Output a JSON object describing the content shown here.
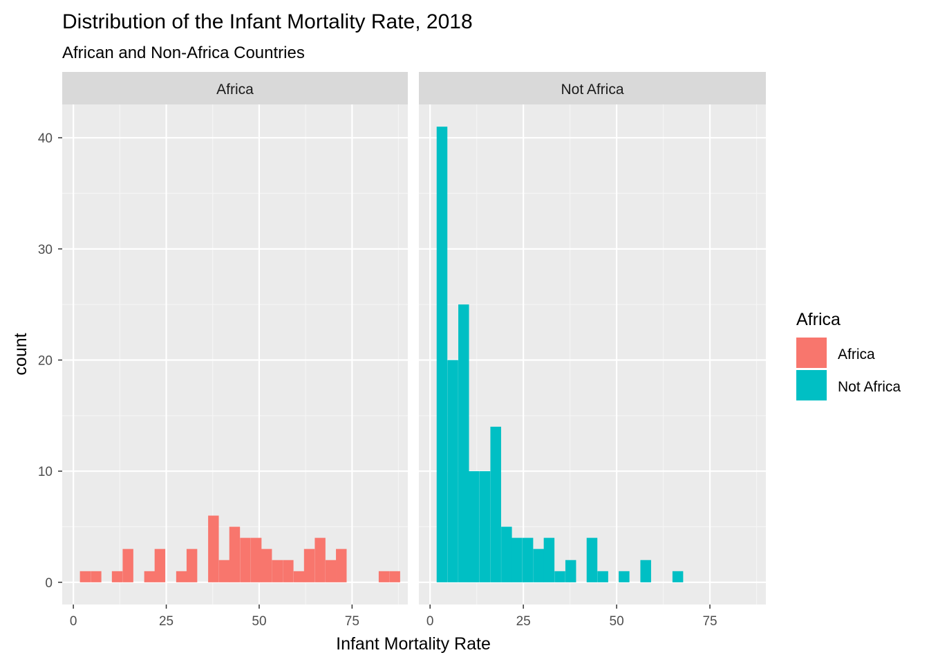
{
  "chart_data": {
    "type": "bar",
    "chart_kind": "faceted histogram",
    "title": "Distribution of the Infant Mortality Rate, 2018",
    "subtitle": "African and Non-Africa Countries",
    "xlabel": "Infant Mortality Rate",
    "ylabel": "count",
    "xlim": [
      -3,
      90
    ],
    "ylim": [
      -2,
      43
    ],
    "x_ticks": [
      0,
      25,
      50,
      75
    ],
    "y_ticks": [
      0,
      10,
      20,
      30,
      40
    ],
    "x_minor": [
      12.5,
      37.5,
      62.5,
      87.5
    ],
    "y_minor": [
      5,
      15,
      25,
      35
    ],
    "grid": true,
    "bin_width": 2.87,
    "legend": {
      "title": "Africa",
      "position": "right",
      "entries": [
        {
          "label": "Africa",
          "color": "#F8766D"
        },
        {
          "label": "Not Africa",
          "color": "#00BFC4"
        }
      ]
    },
    "facets": [
      {
        "label": "Africa",
        "color": "#F8766D",
        "bin_centers": [
          3.2,
          6.1,
          9.0,
          11.8,
          14.7,
          17.6,
          20.5,
          23.3,
          26.2,
          29.1,
          31.9,
          34.8,
          37.7,
          40.6,
          43.4,
          46.3,
          49.2,
          52.0,
          54.9,
          57.8,
          60.7,
          63.5,
          66.4,
          69.3,
          72.1,
          75.0,
          77.9,
          80.8,
          83.6,
          86.5
        ],
        "counts": [
          1,
          1,
          0,
          1,
          3,
          0,
          1,
          3,
          0,
          1,
          3,
          0,
          6,
          2,
          5,
          4,
          4,
          3,
          2,
          2,
          1,
          3,
          4,
          2,
          3,
          0,
          0,
          0,
          1,
          1
        ]
      },
      {
        "label": "Not Africa",
        "color": "#00BFC4",
        "bin_centers": [
          3.2,
          6.1,
          9.0,
          11.8,
          14.7,
          17.6,
          20.5,
          23.3,
          26.2,
          29.1,
          31.9,
          34.8,
          37.7,
          40.6,
          43.4,
          46.3,
          49.2,
          52.0,
          54.9,
          57.8,
          60.7,
          63.5,
          66.4
        ],
        "counts": [
          41,
          20,
          25,
          10,
          10,
          14,
          5,
          4,
          4,
          3,
          4,
          1,
          2,
          0,
          4,
          1,
          0,
          1,
          0,
          2,
          0,
          0,
          1
        ]
      }
    ]
  },
  "colors": {
    "panel_background": "#EBEBEB",
    "strip_background": "#D9D9D9",
    "grid_major": "#FFFFFF",
    "grid_minor": "#F5F5F5",
    "tick_text": "#4D4D4D"
  }
}
